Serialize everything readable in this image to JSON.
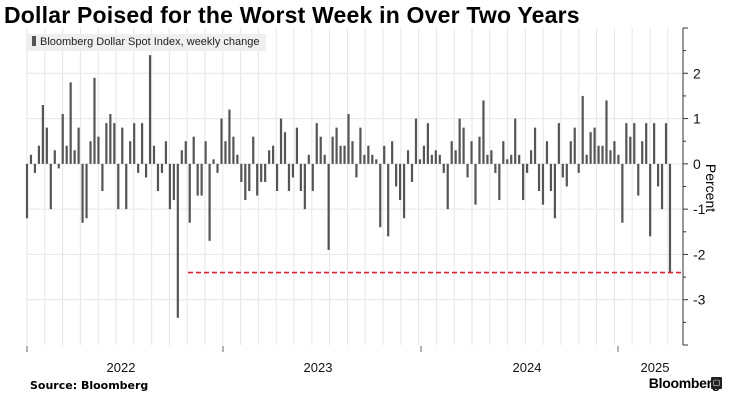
{
  "title": "Dollar Poised for the Worst Week in Over Two Years",
  "source": "Source: Bloomberg",
  "brand": "Bloomberg",
  "brand_icon": "terminal-icon",
  "chart_data": {
    "type": "bar",
    "title": "Dollar Poised for the Worst Week in Over Two Years",
    "legend": [
      "Bloomberg Dollar Spot Index, weekly change"
    ],
    "legend_position": "top-left",
    "xlabel": "",
    "ylabel": "Percent",
    "y_axis_side": "right",
    "ylim": [
      -4,
      3
    ],
    "yticks": [
      -3,
      -2,
      -1,
      0,
      1,
      2
    ],
    "x_tick_labels": [
      "2022",
      "2023",
      "2024",
      "2025"
    ],
    "grid": true,
    "reference_line": {
      "value": -2.4,
      "color": "#e3202f",
      "style": "dashed",
      "label": ""
    },
    "series": [
      {
        "name": "Bloomberg Dollar Spot Index, weekly change",
        "color": "#555555",
        "values": [
          -1.2,
          0.2,
          -0.2,
          0.4,
          1.3,
          0.8,
          -1.0,
          0.3,
          -0.1,
          1.1,
          0.4,
          1.8,
          0.3,
          0.8,
          -1.3,
          -1.2,
          0.5,
          1.9,
          0.6,
          -0.6,
          0.9,
          1.1,
          0.9,
          -1.0,
          0.8,
          -1.0,
          0.5,
          0.9,
          -0.2,
          0.9,
          -0.3,
          2.4,
          0.4,
          -0.6,
          -0.2,
          0.5,
          -1.0,
          -0.8,
          -3.4,
          0.3,
          0.5,
          -1.3,
          0.6,
          -0.7,
          -0.7,
          0.5,
          -1.7,
          0.1,
          -0.2,
          1.0,
          0.5,
          1.2,
          0.6,
          0.2,
          -0.4,
          -0.8,
          -0.6,
          0.6,
          -0.7,
          -0.4,
          -0.4,
          0.3,
          0.4,
          -0.6,
          1.0,
          0.7,
          -0.6,
          -0.3,
          0.8,
          -0.6,
          -1.0,
          0.2,
          -0.6,
          0.9,
          0.6,
          0.2,
          -1.9,
          0.6,
          0.8,
          0.4,
          0.4,
          1.1,
          0.5,
          -0.3,
          0.8,
          0.2,
          0.4,
          0.2,
          0.1,
          -1.4,
          0.4,
          -1.6,
          0.5,
          -0.5,
          -0.8,
          -1.2,
          0.3,
          -0.4,
          1.0,
          0.1,
          0.4,
          0.9,
          0.2,
          0.3,
          0.2,
          -0.2,
          -1.0,
          0.5,
          0.3,
          1.0,
          0.8,
          -0.3,
          0.5,
          -0.9,
          0.6,
          1.4,
          0.2,
          0.3,
          -0.2,
          -0.8,
          0.5,
          0.1,
          0.2,
          1.0,
          0.2,
          -0.8,
          -0.2,
          0.3,
          0.8,
          -0.6,
          -0.9,
          0.5,
          -0.6,
          -1.2,
          0.9,
          -0.3,
          -0.5,
          0.5,
          0.8,
          -0.2,
          1.5,
          0.2,
          0.7,
          0.8,
          0.4,
          0.4,
          1.4,
          0.3,
          0.5,
          0.2,
          -1.3,
          0.9,
          0.6,
          0.9,
          -0.7,
          0.5,
          0.9,
          -1.6,
          0.9,
          -0.5,
          -1.0,
          0.9,
          -2.4
        ]
      }
    ]
  }
}
